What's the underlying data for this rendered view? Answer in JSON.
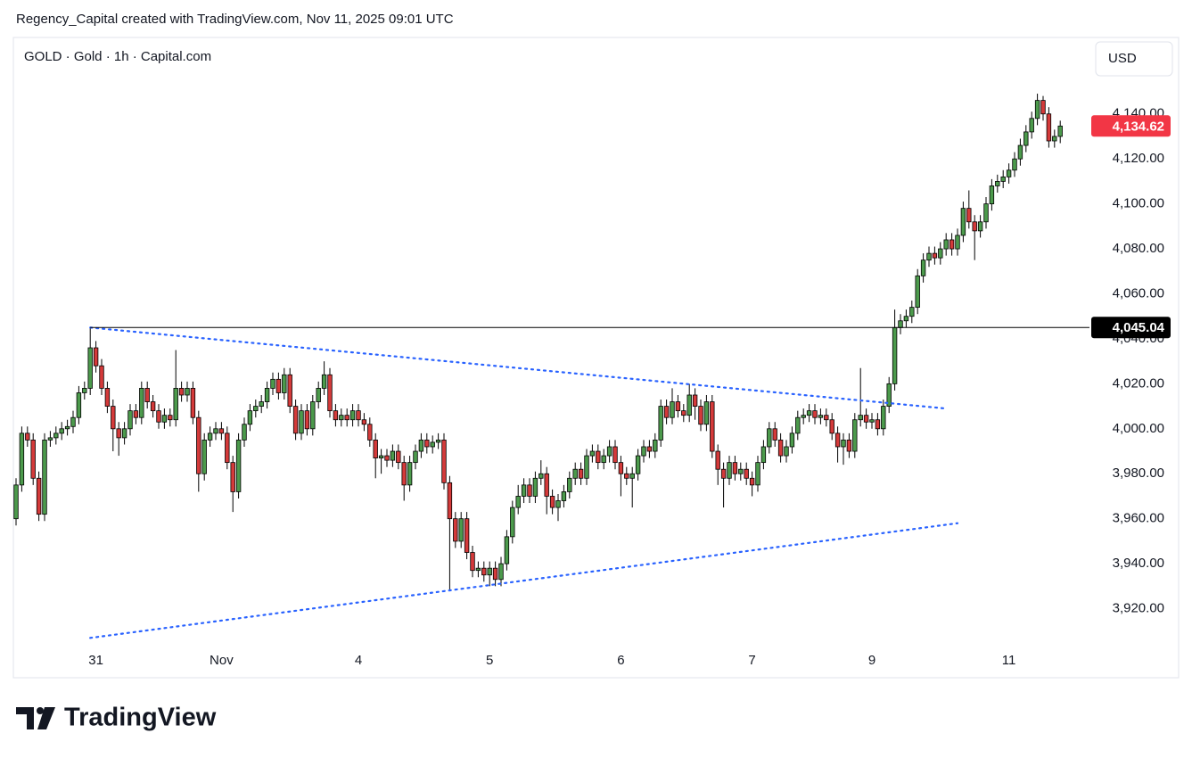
{
  "header": {
    "title": "Regency_Capital created with TradingView.com, Nov 11, 2025 09:01 UTC"
  },
  "footer": {
    "brand": "TradingView"
  },
  "chart_data": {
    "type": "candlestick",
    "symbol": "GOLD · Gold · 1h · Capital.com",
    "currency": "USD",
    "up_color": "#4c9a4c",
    "down_color": "#d43a3a",
    "wick_color": "#000000",
    "ylim": [
      3900,
      4174
    ],
    "yticks": [
      {
        "value": 3920,
        "label": "3,920.00"
      },
      {
        "value": 3940,
        "label": "3,940.00"
      },
      {
        "value": 3960,
        "label": "3,960.00"
      },
      {
        "value": 3980,
        "label": "3,980.00"
      },
      {
        "value": 4000,
        "label": "4,000.00"
      },
      {
        "value": 4020,
        "label": "4,020.00"
      },
      {
        "value": 4040,
        "label": "4,040.00"
      },
      {
        "value": 4060,
        "label": "4,060.00"
      },
      {
        "value": 4080,
        "label": "4,080.00"
      },
      {
        "value": 4100,
        "label": "4,100.00"
      },
      {
        "value": 4120,
        "label": "4,120.00"
      },
      {
        "value": 4140,
        "label": "4,140.00"
      }
    ],
    "xticks": [
      {
        "value": 14,
        "label": "31"
      },
      {
        "value": 36,
        "label": "Nov"
      },
      {
        "value": 60,
        "label": "4"
      },
      {
        "value": 83,
        "label": "5"
      },
      {
        "value": 106,
        "label": "6"
      },
      {
        "value": 129,
        "label": "7"
      },
      {
        "value": 150,
        "label": "9"
      },
      {
        "value": 174,
        "label": "11"
      }
    ],
    "open": [
      3960,
      3975,
      3998,
      3995,
      3978,
      3962,
      3995,
      3996,
      3998,
      4000,
      4001,
      4005,
      4016,
      4018,
      4036,
      4028,
      4018,
      4010,
      4000,
      3996,
      4000,
      4008,
      4005,
      4018,
      4012,
      4008,
      4003,
      4006,
      4004,
      4018,
      4015,
      4018,
      4005,
      3980,
      3995,
      3998,
      4000,
      3998,
      3985,
      3972,
      3995,
      4002,
      4008,
      4010,
      4012,
      4018,
      4022,
      4016,
      4024,
      4010,
      3998,
      4008,
      4000,
      4012,
      4018,
      4024,
      4008,
      4004,
      4006,
      4004,
      4008,
      4004,
      4002,
      3995,
      3987,
      3988,
      3986,
      3990,
      3985,
      3975,
      3985,
      3990,
      3995,
      3992,
      3994,
      3995,
      3976,
      3960,
      3950,
      3960,
      3945,
      3937,
      3938,
      3935,
      3938,
      3933,
      3940,
      3952,
      3965,
      3970,
      3975,
      3970,
      3978,
      3980,
      3970,
      3965,
      3968,
      3972,
      3978,
      3982,
      3978,
      3988,
      3990,
      3985,
      3988,
      3992,
      3985,
      3980,
      3978,
      3980,
      3988,
      3992,
      3990,
      3995,
      4010,
      4005,
      4012,
      4008,
      4006,
      4015,
      4010,
      4002,
      4012,
      3990,
      3982,
      3978,
      3985,
      3980,
      3982,
      3978,
      3975,
      3985,
      3992,
      4000,
      3995,
      3988,
      3992,
      3998,
      4005,
      4006,
      4008,
      4005,
      4006,
      4004,
      3998,
      3992,
      3995,
      3990,
      4004,
      4006,
      4003,
      4004,
      4000,
      4010,
      4020,
      4045,
      4048,
      4050,
      4054,
      4068,
      4075,
      4078,
      4076,
      4080,
      4084,
      4080,
      4086,
      4098,
      4092,
      4088,
      4092,
      4100,
      4108,
      4110,
      4112,
      4115,
      4120,
      4126,
      4132,
      4138,
      4146,
      4140,
      4128,
      4130
    ],
    "high": [
      3978,
      4001,
      4001,
      3998,
      3981,
      3998,
      3999,
      4001,
      4003,
      4004,
      4008,
      4019,
      4021,
      4045,
      4039,
      4031,
      4021,
      4013,
      4003,
      4003,
      4011,
      4011,
      4021,
      4021,
      4015,
      4011,
      4009,
      4009,
      4035,
      4021,
      4021,
      4021,
      4008,
      3998,
      4001,
      4003,
      4003,
      4001,
      3988,
      3998,
      4005,
      4011,
      4013,
      4015,
      4021,
      4025,
      4025,
      4027,
      4027,
      4013,
      4011,
      4011,
      4015,
      4021,
      4030,
      4027,
      4011,
      4009,
      4009,
      4011,
      4011,
      4007,
      4005,
      3998,
      3991,
      3991,
      3993,
      3993,
      3988,
      3988,
      3993,
      3998,
      3998,
      3997,
      3998,
      3998,
      3979,
      3963,
      3963,
      3963,
      3948,
      3941,
      3941,
      3941,
      3941,
      3943,
      3955,
      3968,
      3975,
      3978,
      3978,
      3981,
      3986,
      3983,
      3973,
      3971,
      3975,
      3981,
      3985,
      3985,
      3991,
      3993,
      3993,
      3991,
      3995,
      3995,
      3988,
      3983,
      3983,
      3991,
      3995,
      3995,
      3998,
      4013,
      4013,
      4018,
      4015,
      4011,
      4020,
      4018,
      4013,
      4015,
      4015,
      3993,
      3985,
      3988,
      3988,
      3985,
      3985,
      3981,
      3988,
      3995,
      4003,
      4003,
      3998,
      3995,
      4001,
      4008,
      4009,
      4011,
      4011,
      4009,
      4009,
      4007,
      4001,
      3998,
      3998,
      4007,
      4027,
      4009,
      4007,
      4007,
      4013,
      4023,
      4053,
      4051,
      4053,
      4057,
      4071,
      4078,
      4081,
      4081,
      4083,
      4087,
      4087,
      4089,
      4101,
      4106,
      4095,
      4095,
      4103,
      4111,
      4113,
      4115,
      4118,
      4123,
      4129,
      4135,
      4141,
      4149,
      4148,
      4143,
      4133,
      4137
    ],
    "low": [
      3957,
      3972,
      3992,
      3975,
      3959,
      3959,
      3992,
      3993,
      3995,
      3997,
      3998,
      4002,
      4013,
      4015,
      4025,
      4015,
      4007,
      3990,
      3988,
      3993,
      3997,
      4002,
      4002,
      4009,
      4005,
      4000,
      4000,
      4001,
      4001,
      4012,
      4012,
      4002,
      3972,
      3977,
      3992,
      3995,
      3995,
      3982,
      3963,
      3969,
      3992,
      3999,
      4005,
      4007,
      4009,
      4015,
      4013,
      4013,
      4007,
      3995,
      3995,
      3997,
      3997,
      4009,
      4015,
      4005,
      4001,
      4001,
      4001,
      4001,
      4001,
      3999,
      3992,
      3978,
      3980,
      3983,
      3983,
      3982,
      3968,
      3972,
      3982,
      3987,
      3989,
      3989,
      3991,
      3973,
      3928,
      3947,
      3947,
      3942,
      3934,
      3934,
      3932,
      3930,
      3930,
      3930,
      3937,
      3949,
      3962,
      3967,
      3967,
      3967,
      3975,
      3962,
      3962,
      3959,
      3965,
      3969,
      3975,
      3975,
      3975,
      3985,
      3982,
      3982,
      3985,
      3982,
      3970,
      3975,
      3965,
      3977,
      3985,
      3987,
      3987,
      3992,
      4002,
      4002,
      4005,
      4003,
      4003,
      4004,
      3999,
      3999,
      3987,
      3975,
      3965,
      3975,
      3977,
      3977,
      3975,
      3970,
      3972,
      3982,
      3989,
      3992,
      3985,
      3985,
      3989,
      3995,
      4002,
      4003,
      4002,
      4002,
      4001,
      3995,
      3985,
      3984,
      3987,
      3987,
      4001,
      4000,
      4000,
      3997,
      3997,
      4007,
      4017,
      4042,
      4045,
      4047,
      4051,
      4065,
      4072,
      4073,
      4073,
      4077,
      4077,
      4077,
      4083,
      4089,
      4075,
      4085,
      4089,
      4097,
      4105,
      4107,
      4109,
      4112,
      4117,
      4123,
      4129,
      4135,
      4137,
      4125,
      4125,
      4127
    ],
    "close": [
      3975,
      3998,
      3995,
      3978,
      3962,
      3995,
      3996,
      3998,
      4000,
      4001,
      4005,
      4016,
      4018,
      4036,
      4028,
      4018,
      4010,
      4000,
      3996,
      4000,
      4008,
      4005,
      4018,
      4012,
      4008,
      4003,
      4006,
      4004,
      4018,
      4015,
      4018,
      4005,
      3980,
      3995,
      3998,
      4000,
      3998,
      3985,
      3972,
      3995,
      4002,
      4008,
      4010,
      4012,
      4018,
      4022,
      4016,
      4024,
      4010,
      3998,
      4008,
      4000,
      4012,
      4018,
      4024,
      4008,
      4004,
      4006,
      4004,
      4008,
      4004,
      4002,
      3995,
      3987,
      3988,
      3986,
      3990,
      3985,
      3975,
      3985,
      3990,
      3995,
      3992,
      3994,
      3995,
      3976,
      3960,
      3950,
      3960,
      3945,
      3937,
      3938,
      3935,
      3938,
      3933,
      3940,
      3952,
      3965,
      3970,
      3975,
      3970,
      3978,
      3980,
      3970,
      3965,
      3968,
      3972,
      3978,
      3982,
      3978,
      3988,
      3990,
      3985,
      3988,
      3992,
      3985,
      3980,
      3978,
      3980,
      3988,
      3992,
      3990,
      3995,
      4010,
      4005,
      4012,
      4008,
      4006,
      4015,
      4010,
      4002,
      4012,
      3990,
      3982,
      3978,
      3985,
      3980,
      3982,
      3978,
      3975,
      3985,
      3992,
      4000,
      3995,
      3988,
      3992,
      3998,
      4005,
      4006,
      4008,
      4005,
      4006,
      4004,
      3998,
      3992,
      3995,
      3990,
      4004,
      4006,
      4003,
      4004,
      4000,
      4010,
      4020,
      4045,
      4048,
      4050,
      4054,
      4068,
      4075,
      4078,
      4076,
      4080,
      4084,
      4080,
      4086,
      4098,
      4092,
      4088,
      4092,
      4100,
      4108,
      4110,
      4112,
      4115,
      4120,
      4126,
      4132,
      4138,
      4146,
      4140,
      4128,
      4130,
      4134.62
    ],
    "trendlines": [
      {
        "x": [
          13,
          163
        ],
        "y": [
          4045,
          4009
        ],
        "color": "#2962ff"
      },
      {
        "x": [
          13,
          165
        ],
        "y": [
          3907,
          3958
        ],
        "color": "#2962ff"
      }
    ],
    "price_lines": [
      {
        "value": 4045.04,
        "label": "4,045.04",
        "color": "#000000",
        "line": true
      },
      {
        "value": 4134.62,
        "label": "4,134.62",
        "color": "#f23645",
        "line": false
      }
    ]
  }
}
